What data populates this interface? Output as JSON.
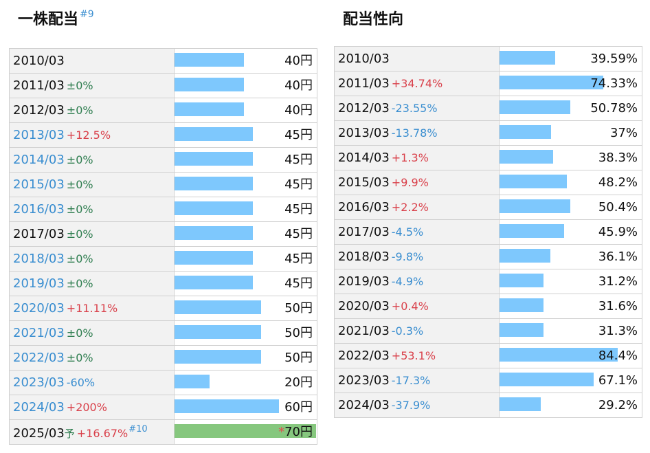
{
  "left_panel": {
    "title": "一株配当",
    "title_note": "#9",
    "forecast_marker": "予",
    "forecast_note": "#10",
    "forecast_asterisk": "*"
  },
  "right_panel": {
    "title": "配当性向"
  },
  "colors": {
    "bar": "#7ec8fd",
    "forecast_bar": "#86c77e",
    "increase": "#d9404a",
    "decrease": "#3a8ed0",
    "unchanged": "#2e7d4f"
  },
  "chart_data": [
    {
      "type": "bar",
      "title": "一株配当",
      "unit": "円",
      "orientation": "horizontal",
      "rows": [
        {
          "period": "2010/03",
          "change": "",
          "change_dir": "none",
          "value": 40,
          "value_label": "40円",
          "link": false
        },
        {
          "period": "2011/03",
          "change": "±0%",
          "change_dir": "flat",
          "value": 40,
          "value_label": "40円",
          "link": false
        },
        {
          "period": "2012/03",
          "change": "±0%",
          "change_dir": "flat",
          "value": 40,
          "value_label": "40円",
          "link": false
        },
        {
          "period": "2013/03",
          "change": "+12.5%",
          "change_dir": "up",
          "value": 45,
          "value_label": "45円",
          "link": true
        },
        {
          "period": "2014/03",
          "change": "±0%",
          "change_dir": "flat",
          "value": 45,
          "value_label": "45円",
          "link": true
        },
        {
          "period": "2015/03",
          "change": "±0%",
          "change_dir": "flat",
          "value": 45,
          "value_label": "45円",
          "link": true
        },
        {
          "period": "2016/03",
          "change": "±0%",
          "change_dir": "flat",
          "value": 45,
          "value_label": "45円",
          "link": true
        },
        {
          "period": "2017/03",
          "change": "±0%",
          "change_dir": "flat",
          "value": 45,
          "value_label": "45円",
          "link": false
        },
        {
          "period": "2018/03",
          "change": "±0%",
          "change_dir": "flat",
          "value": 45,
          "value_label": "45円",
          "link": true
        },
        {
          "period": "2019/03",
          "change": "±0%",
          "change_dir": "flat",
          "value": 45,
          "value_label": "45円",
          "link": true
        },
        {
          "period": "2020/03",
          "change": "+11.11%",
          "change_dir": "up",
          "value": 50,
          "value_label": "50円",
          "link": true
        },
        {
          "period": "2021/03",
          "change": "±0%",
          "change_dir": "flat",
          "value": 50,
          "value_label": "50円",
          "link": true
        },
        {
          "period": "2022/03",
          "change": "±0%",
          "change_dir": "flat",
          "value": 50,
          "value_label": "50円",
          "link": true
        },
        {
          "period": "2023/03",
          "change": "-60%",
          "change_dir": "down",
          "value": 20,
          "value_label": "20円",
          "link": true
        },
        {
          "period": "2024/03",
          "change": "+200%",
          "change_dir": "up",
          "value": 60,
          "value_label": "60円",
          "link": true
        },
        {
          "period": "2025/03",
          "change": "+16.67%",
          "change_dir": "up",
          "value": 70,
          "value_label": "70円",
          "link": false,
          "forecast": true
        }
      ],
      "xlim": [
        0,
        70
      ]
    },
    {
      "type": "bar",
      "title": "配当性向",
      "unit": "%",
      "orientation": "horizontal",
      "rows": [
        {
          "period": "2010/03",
          "change": "",
          "change_dir": "none",
          "value": 39.59,
          "value_label": "39.59%"
        },
        {
          "period": "2011/03",
          "change": "+34.74%",
          "change_dir": "up",
          "value": 74.33,
          "value_label": "74.33%"
        },
        {
          "period": "2012/03",
          "change": "-23.55%",
          "change_dir": "down",
          "value": 50.78,
          "value_label": "50.78%"
        },
        {
          "period": "2013/03",
          "change": "-13.78%",
          "change_dir": "down",
          "value": 37,
          "value_label": "37%"
        },
        {
          "period": "2014/03",
          "change": "+1.3%",
          "change_dir": "up",
          "value": 38.3,
          "value_label": "38.3%"
        },
        {
          "period": "2015/03",
          "change": "+9.9%",
          "change_dir": "up",
          "value": 48.2,
          "value_label": "48.2%"
        },
        {
          "period": "2016/03",
          "change": "+2.2%",
          "change_dir": "up",
          "value": 50.4,
          "value_label": "50.4%"
        },
        {
          "period": "2017/03",
          "change": "-4.5%",
          "change_dir": "down",
          "value": 45.9,
          "value_label": "45.9%"
        },
        {
          "period": "2018/03",
          "change": "-9.8%",
          "change_dir": "down",
          "value": 36.1,
          "value_label": "36.1%"
        },
        {
          "period": "2019/03",
          "change": "-4.9%",
          "change_dir": "down",
          "value": 31.2,
          "value_label": "31.2%"
        },
        {
          "period": "2020/03",
          "change": "+0.4%",
          "change_dir": "up",
          "value": 31.6,
          "value_label": "31.6%"
        },
        {
          "period": "2021/03",
          "change": "-0.3%",
          "change_dir": "down",
          "value": 31.3,
          "value_label": "31.3%"
        },
        {
          "period": "2022/03",
          "change": "+53.1%",
          "change_dir": "up",
          "value": 84.4,
          "value_label": "84.4%"
        },
        {
          "period": "2023/03",
          "change": "-17.3%",
          "change_dir": "down",
          "value": 67.1,
          "value_label": "67.1%"
        },
        {
          "period": "2024/03",
          "change": "-37.9%",
          "change_dir": "down",
          "value": 29.2,
          "value_label": "29.2%"
        }
      ],
      "xlim": [
        0,
        84.4
      ]
    }
  ]
}
